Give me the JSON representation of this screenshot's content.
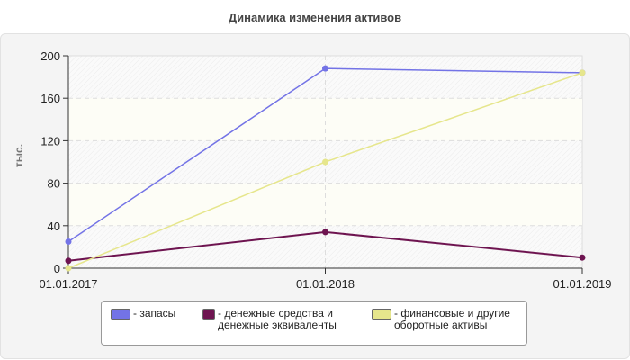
{
  "chart_data": {
    "type": "line",
    "title": "Динамика изменения активов",
    "ylabel": "тыс.",
    "xlabel": "",
    "categories": [
      "01.01.2017",
      "01.01.2018",
      "01.01.2019"
    ],
    "ylim": [
      0,
      200
    ],
    "yticks": [
      "0",
      "40",
      "80",
      "120",
      "160",
      "200"
    ],
    "grid": true,
    "legend_position": "bottom",
    "series": [
      {
        "name": "- запасы",
        "color": "#7373e6",
        "values": [
          25,
          188,
          184
        ]
      },
      {
        "name": "- денежные средства и денежные эквиваленты",
        "color": "#6e1450",
        "values": [
          7,
          34,
          10
        ]
      },
      {
        "name": "- финансовые и другие оборотные активы",
        "color": "#e6e68c",
        "values": [
          0,
          100,
          184
        ]
      }
    ]
  }
}
